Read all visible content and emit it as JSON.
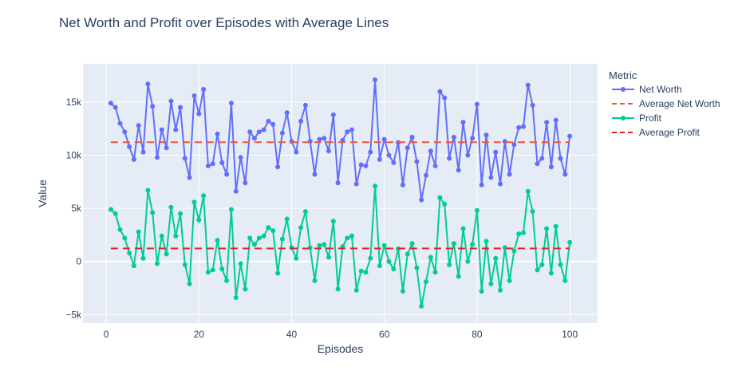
{
  "chart_data": {
    "type": "line",
    "title": "Net Worth and Profit over Episodes with Average Lines",
    "xlabel": "Episodes",
    "ylabel": "Value",
    "xlim": [
      -5,
      106
    ],
    "ylim": [
      -5800,
      18600
    ],
    "x_ticks": [
      0,
      20,
      40,
      60,
      80,
      100
    ],
    "y_ticks": [
      -5000,
      0,
      5000,
      10000,
      15000
    ],
    "y_tick_labels": [
      "−5k",
      "0",
      "5k",
      "10k",
      "15k"
    ],
    "grid": true,
    "legend_title": "Metric",
    "legend_position": "right",
    "colors": {
      "net_worth": "#636efa",
      "avg_net_worth": "#ef553b",
      "profit": "#00cc96",
      "avg_profit": "#e81e1e",
      "plot_bg": "#e5ecf6",
      "grid": "#ffffff",
      "text": "#2a3f5f"
    },
    "series": [
      {
        "name": "Net Worth",
        "style": "lines+markers",
        "x_start": 1,
        "values": [
          14900,
          14500,
          13000,
          12200,
          10800,
          9600,
          12800,
          10300,
          16700,
          14600,
          9800,
          12400,
          10700,
          15100,
          12400,
          14500,
          9700,
          7900,
          15600,
          13900,
          16200,
          9000,
          9200,
          12000,
          9300,
          8200,
          14900,
          6600,
          9800,
          7400,
          12200,
          11600,
          12200,
          12400,
          13200,
          12900,
          8900,
          12100,
          14000,
          11300,
          10300,
          13200,
          14700,
          11300,
          8200,
          11500,
          11600,
          10400,
          13800,
          7400,
          11400,
          12200,
          12400,
          7300,
          9100,
          9000,
          10300,
          17100,
          9600,
          11500,
          10000,
          9300,
          11200,
          7200,
          10700,
          11700,
          9400,
          5800,
          8100,
          10400,
          9000,
          16000,
          15400,
          9700,
          11700,
          8600,
          13100,
          10000,
          11600,
          14800,
          7200,
          11900,
          7900,
          10300,
          7300,
          11300,
          8200,
          11000,
          12600,
          12700,
          16600,
          14700,
          9200,
          9700,
          13100,
          8900,
          13300,
          9700,
          8200,
          11800
        ]
      },
      {
        "name": "Average Net Worth",
        "style": "dash",
        "x": [
          1,
          100
        ],
        "values": [
          11230,
          11230
        ]
      },
      {
        "name": "Profit",
        "style": "lines+markers",
        "x_start": 1,
        "values": [
          4900,
          4500,
          3000,
          2200,
          800,
          -400,
          2800,
          300,
          6700,
          4600,
          -200,
          2400,
          700,
          5100,
          2400,
          4500,
          -300,
          -2100,
          5600,
          3900,
          6200,
          -1000,
          -800,
          2000,
          -700,
          -1800,
          4900,
          -3400,
          -200,
          -2600,
          2200,
          1600,
          2200,
          2400,
          3200,
          2900,
          -1100,
          2100,
          4000,
          1300,
          300,
          3200,
          4700,
          1300,
          -1800,
          1500,
          1600,
          400,
          3800,
          -2600,
          1400,
          2200,
          2400,
          -2700,
          -900,
          -1000,
          300,
          7100,
          -400,
          1500,
          0,
          -700,
          1200,
          -2800,
          700,
          1700,
          -600,
          -4200,
          -1900,
          400,
          -1000,
          6000,
          5400,
          -300,
          1700,
          -1400,
          3100,
          0,
          1600,
          4800,
          -2800,
          1900,
          -2100,
          300,
          -2700,
          1300,
          -1800,
          1000,
          2600,
          2700,
          6600,
          4700,
          -800,
          -300,
          3100,
          -1100,
          3300,
          -300,
          -1800,
          1800
        ]
      },
      {
        "name": "Average Profit",
        "style": "dash",
        "x": [
          1,
          100
        ],
        "values": [
          1230,
          1230
        ]
      }
    ]
  }
}
